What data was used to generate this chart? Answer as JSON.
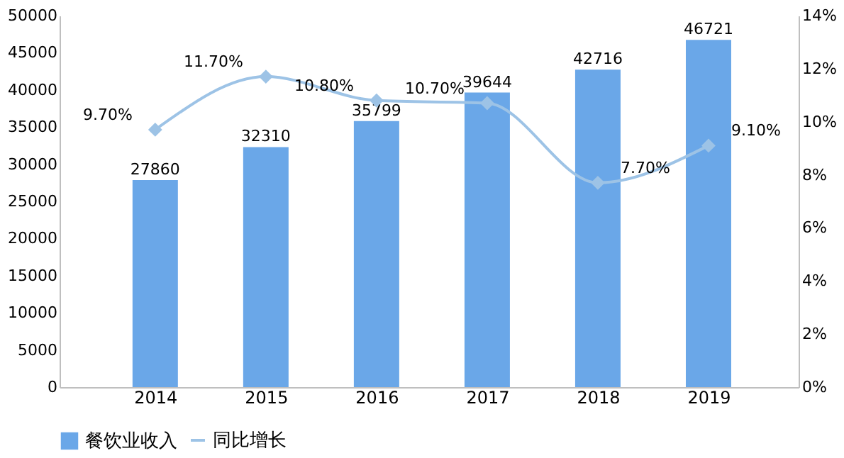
{
  "chart_data": {
    "type": "bar",
    "categories": [
      "2014",
      "2015",
      "2016",
      "2017",
      "2018",
      "2019"
    ],
    "series": [
      {
        "name": "餐饮业收入",
        "color": "#6aa7e8",
        "values": [
          27860,
          32310,
          35799,
          39644,
          42716,
          46721
        ]
      },
      {
        "name": "同比增长",
        "type": "line",
        "axis": "y2",
        "color": "#9dc3e6",
        "marker": "diamond",
        "values": [
          9.7,
          11.7,
          10.8,
          10.7,
          7.7,
          9.1
        ],
        "value_labels": [
          "9.70%",
          "11.70%",
          "10.80%",
          "10.70%",
          "7.70%",
          "9.10%"
        ]
      }
    ],
    "ylim": [
      0,
      50000
    ],
    "yticks": [
      0,
      5000,
      10000,
      15000,
      20000,
      25000,
      30000,
      35000,
      40000,
      45000,
      50000
    ],
    "y2lim": [
      0,
      14
    ],
    "y2ticks": [
      {
        "value": 0,
        "label": "0%"
      },
      {
        "value": 2,
        "label": "2%"
      },
      {
        "value": 4,
        "label": "4%"
      },
      {
        "value": 6,
        "label": "6%"
      },
      {
        "value": 8,
        "label": "8%"
      },
      {
        "value": 10,
        "label": "10%"
      },
      {
        "value": 12,
        "label": "12%"
      },
      {
        "value": 14,
        "label": "14%"
      }
    ],
    "data_labels": true,
    "grid": false,
    "legend": "bottom"
  }
}
